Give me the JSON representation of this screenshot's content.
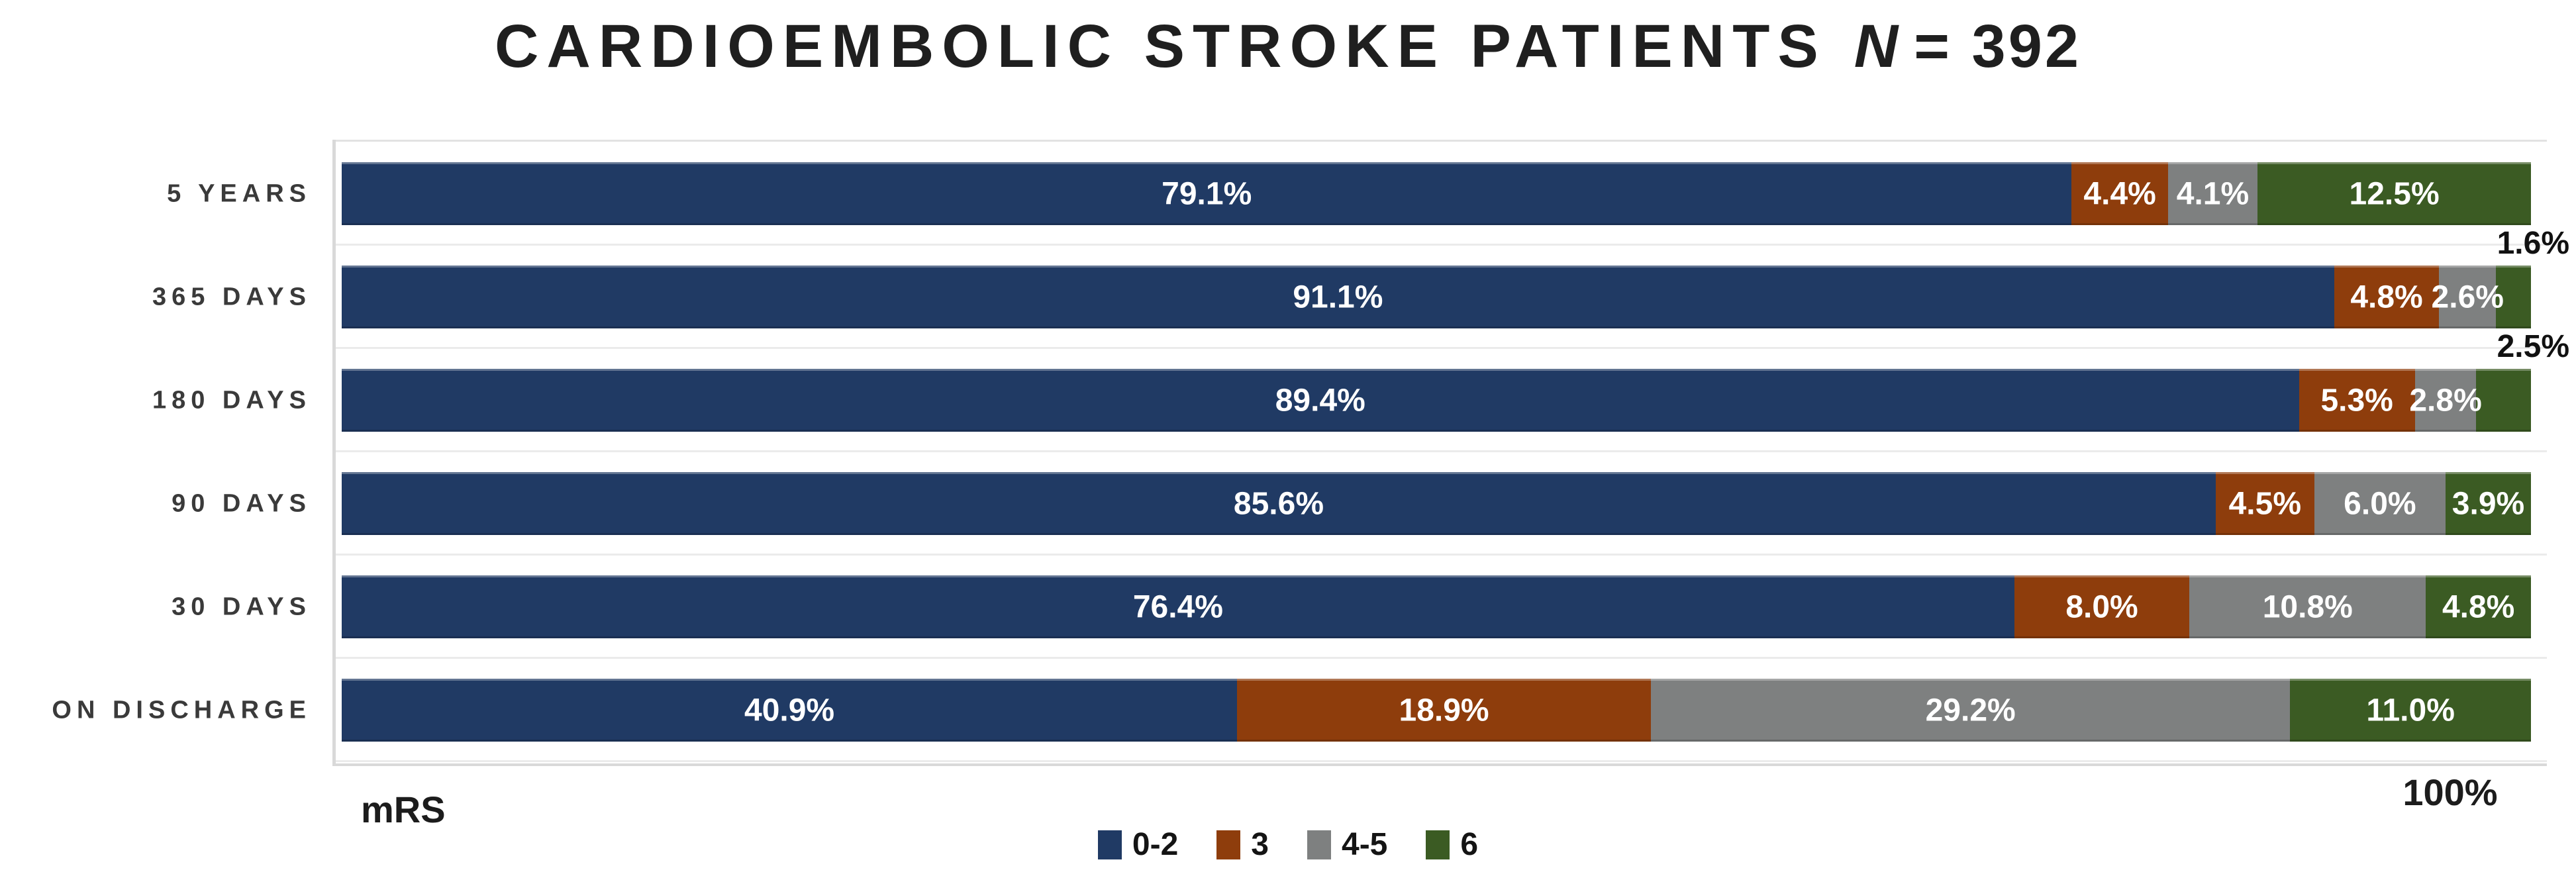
{
  "title": {
    "text": "CARDIOEMBOLIC STROKE PATIENTS",
    "n": "N",
    "rest": "= 392"
  },
  "labels": {
    "x_axis": "mRS",
    "x_max": "100%"
  },
  "colors": {
    "mrs_0_2": "#203A64",
    "mrs_3": "#8E3D0C",
    "mrs_4_5": "#7E8080",
    "mrs_6": "#3B5B23",
    "axis": "#D9D9D9",
    "gridline": "#EBEBEB",
    "label_inside": "#FFFFFF",
    "label_outside": "#111111"
  },
  "legend": [
    {
      "label": "0-2",
      "color": "#203A64"
    },
    {
      "label": "3",
      "color": "#8E3D0C"
    },
    {
      "label": "4-5",
      "color": "#7E8080"
    },
    {
      "label": "6",
      "color": "#3B5B23"
    }
  ],
  "chart_data": {
    "type": "bar",
    "orientation": "horizontal-stacked",
    "title": "CARDIOEMBOLIC STROKE PATIENTS N = 392",
    "xlabel": "mRS",
    "x_max_label": "100%",
    "xlim": [
      0,
      100
    ],
    "grid": "category-separators",
    "legend_position": "bottom",
    "categories": [
      "5 YEARS",
      "365 DAYS",
      "180 DAYS",
      "90 DAYS",
      "30 DAYS",
      "ON DISCHARGE"
    ],
    "series": [
      {
        "name": "0-2",
        "color": "#203A64",
        "values": [
          79.1,
          91.1,
          89.4,
          85.6,
          76.4,
          40.9
        ]
      },
      {
        "name": "3",
        "color": "#8E3D0C",
        "values": [
          4.4,
          4.8,
          5.3,
          4.5,
          8.0,
          18.9
        ]
      },
      {
        "name": "4-5",
        "color": "#7E8080",
        "values": [
          4.1,
          2.6,
          2.8,
          6.0,
          10.8,
          29.2
        ]
      },
      {
        "name": "6",
        "color": "#3B5B23",
        "values": [
          12.5,
          1.6,
          2.5,
          3.9,
          4.8,
          11.0
        ]
      }
    ],
    "value_labels": [
      [
        "79.1%",
        "4.4%",
        "4.1%",
        "12.5%"
      ],
      [
        "91.1%",
        "4.8%",
        "2.6%",
        "1.6%"
      ],
      [
        "89.4%",
        "5.3%",
        "2.8%",
        "2.5%"
      ],
      [
        "85.6%",
        "4.5%",
        "6.0%",
        "3.9%"
      ],
      [
        "76.4%",
        "8.0%",
        "10.8%",
        "4.8%"
      ],
      [
        "40.9%",
        "18.9%",
        "29.2%",
        "11.0%"
      ]
    ],
    "outside_label_cells": [
      [
        1,
        3
      ],
      [
        2,
        3
      ]
    ]
  }
}
